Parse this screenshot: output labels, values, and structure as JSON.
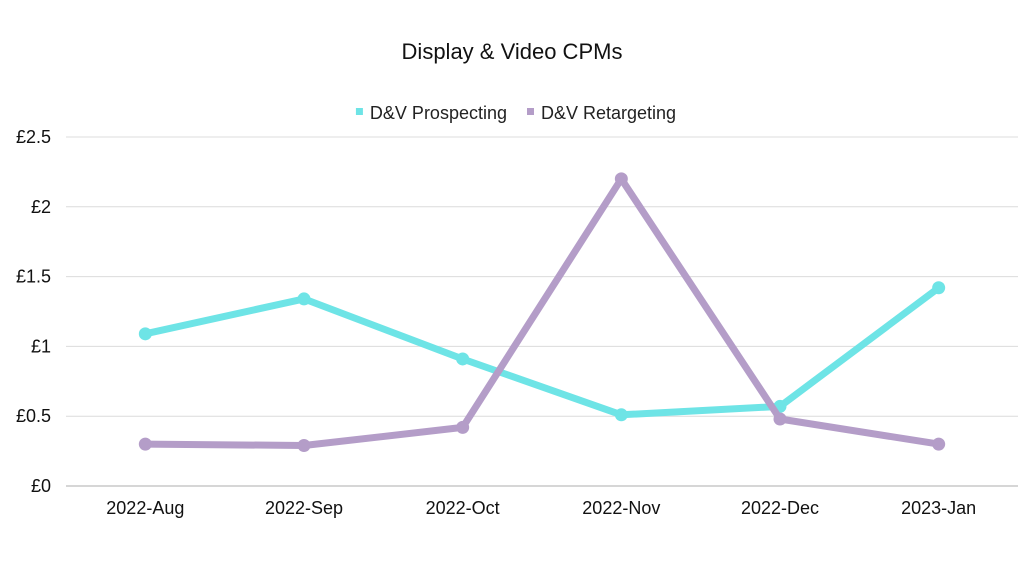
{
  "chart_data": {
    "type": "line",
    "title": "Display & Video CPMs",
    "categories": [
      "2022-Aug",
      "2022-Sep",
      "2022-Oct",
      "2022-Nov",
      "2022-Dec",
      "2023-Jan"
    ],
    "series": [
      {
        "name": "D&V Prospecting",
        "color": "#6ee4e6",
        "values": [
          1.09,
          1.34,
          0.91,
          0.51,
          0.57,
          1.42
        ]
      },
      {
        "name": "D&V Retargeting",
        "color": "#b49dc8",
        "values": [
          0.3,
          0.29,
          0.42,
          2.2,
          0.48,
          0.3
        ]
      }
    ],
    "ylim": [
      0,
      2.5
    ],
    "yticks": [
      {
        "value": 0,
        "label": "£0"
      },
      {
        "value": 0.5,
        "label": "£0.5"
      },
      {
        "value": 1,
        "label": "£1"
      },
      {
        "value": 1.5,
        "label": "£1.5"
      },
      {
        "value": 2,
        "label": "£2"
      },
      {
        "value": 2.5,
        "label": "£2.5"
      }
    ],
    "grid": true,
    "legend": "top-center"
  }
}
